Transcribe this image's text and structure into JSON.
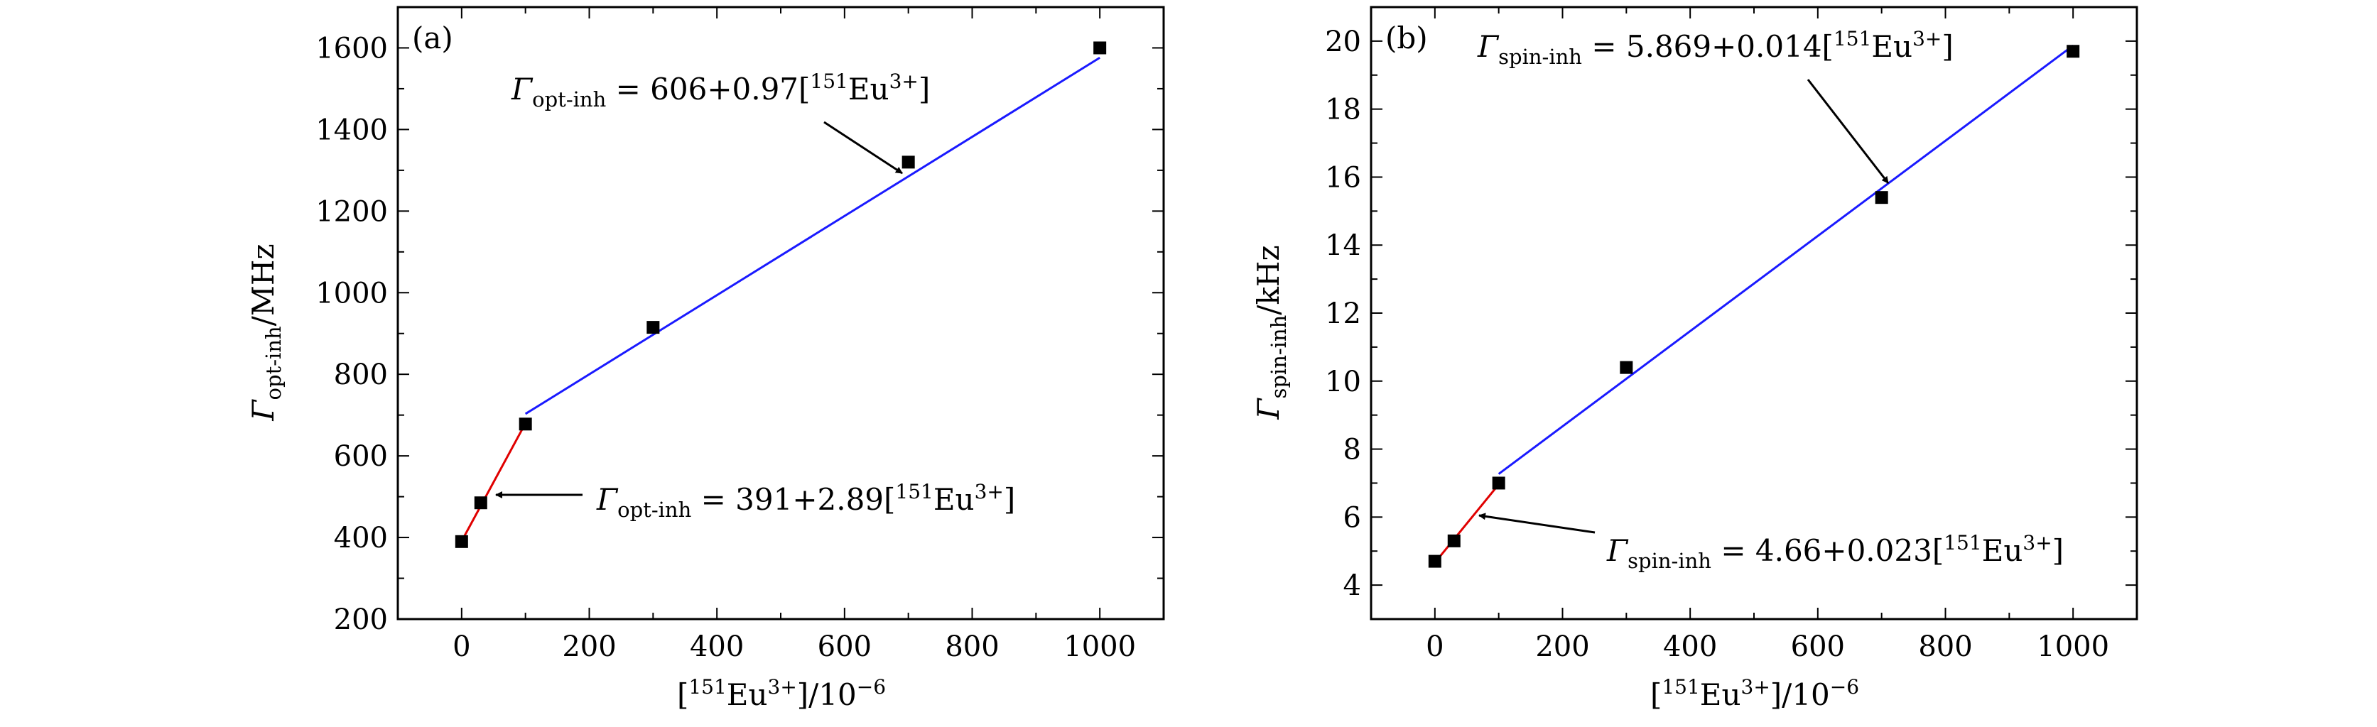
{
  "chart_data": [
    {
      "type": "scatter",
      "panel_label": "(a)",
      "xlabel": "[151Eu3+]/10−6",
      "ylabel": "Γopt-inh/MHz",
      "xlim": [
        -100,
        1100
      ],
      "ylim": [
        200,
        1700
      ],
      "xticks": [
        0,
        200,
        400,
        600,
        800,
        1000
      ],
      "yticks": [
        200,
        400,
        600,
        800,
        1000,
        1200,
        1400,
        1600
      ],
      "ylabel_parts": {
        "symbol": "Γ",
        "sub": "opt-inh",
        "unit": "/MHz"
      },
      "series": [
        {
          "x": [
            0,
            30,
            100,
            300,
            700,
            1000
          ],
          "y": [
            390,
            485,
            678,
            915,
            1320,
            1600
          ]
        }
      ],
      "fits": [
        {
          "color": "#e00000",
          "intercept": 391,
          "slope": 2.89,
          "x_range": [
            0,
            100
          ]
        },
        {
          "color": "#1a1aff",
          "intercept": 606,
          "slope": 0.97,
          "x_range": [
            100,
            1000
          ]
        }
      ],
      "annotations": [
        {
          "symbol": "Γ",
          "sub": "opt-inh",
          "formula": " = 606+0.97[",
          "iso": "151",
          "species": "Eu",
          "charge": "3+",
          "close": "]"
        },
        {
          "symbol": "Γ",
          "sub": "opt-inh",
          "formula": " = 391+2.89[",
          "iso": "151",
          "species": "Eu",
          "charge": "3+",
          "close": "]"
        }
      ]
    },
    {
      "type": "scatter",
      "panel_label": "(b)",
      "xlabel": "[151Eu3+]/10−6",
      "ylabel": "Γspin-inh/kHz",
      "xlim": [
        -100,
        1100
      ],
      "ylim": [
        3,
        21
      ],
      "xticks": [
        0,
        200,
        400,
        600,
        800,
        1000
      ],
      "yticks": [
        4,
        6,
        8,
        10,
        12,
        14,
        16,
        18,
        20
      ],
      "ylabel_parts": {
        "symbol": "Γ",
        "sub": "spin-inh",
        "unit": "/kHz"
      },
      "series": [
        {
          "x": [
            0,
            30,
            100,
            300,
            700,
            1000
          ],
          "y": [
            4.7,
            5.3,
            7.0,
            10.4,
            15.4,
            19.7
          ]
        }
      ],
      "fits": [
        {
          "color": "#e00000",
          "intercept": 4.66,
          "slope": 0.023,
          "x_range": [
            0,
            100
          ]
        },
        {
          "color": "#1a1aff",
          "intercept": 5.869,
          "slope": 0.014,
          "x_range": [
            100,
            1000
          ]
        }
      ],
      "annotations": [
        {
          "symbol": "Γ",
          "sub": "spin-inh",
          "formula": " = 5.869+0.014[",
          "iso": "151",
          "species": "Eu",
          "charge": "3+",
          "close": "]"
        },
        {
          "symbol": "Γ",
          "sub": "spin-inh",
          "formula": " = 4.66+0.023[",
          "iso": "151",
          "species": "Eu",
          "charge": "3+",
          "close": "]"
        }
      ]
    }
  ],
  "xlabel_parts": {
    "open": "[",
    "iso": "151",
    "species": "Eu",
    "charge": "3+",
    "close": "]/10",
    "exp": "−6"
  }
}
